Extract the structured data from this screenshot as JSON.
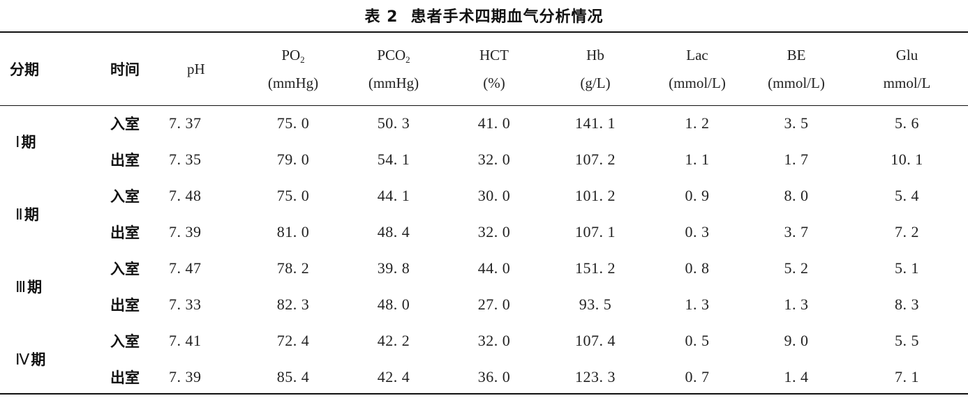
{
  "title": {
    "number": "表 2",
    "text": "患者手术四期血气分析情况"
  },
  "columns": [
    {
      "line1": "分期",
      "line2": ""
    },
    {
      "line1": "时间",
      "line2": ""
    },
    {
      "line1": "pH",
      "line2": ""
    },
    {
      "line1": "PO",
      "line1_sub": "2",
      "line2": "(mmHg)"
    },
    {
      "line1": "PCO",
      "line1_sub": "2",
      "line2": "(mmHg)"
    },
    {
      "line1": "HCT",
      "line2": "(%)"
    },
    {
      "line1": "Hb",
      "line2": "(g/L)"
    },
    {
      "line1": "Lac",
      "line2": "(mmol/L)"
    },
    {
      "line1": "BE",
      "line2": "(mmol/L)"
    },
    {
      "line1": "Glu",
      "line2": "mmol/L"
    }
  ],
  "stages": [
    {
      "roman": "Ⅰ",
      "label": "期"
    },
    {
      "roman": "Ⅱ",
      "label": "期"
    },
    {
      "roman": "Ⅲ",
      "label": "期"
    },
    {
      "roman": "Ⅳ",
      "label": "期"
    }
  ],
  "rows": [
    {
      "time": "入室",
      "ph": "7. 37",
      "po2": "75. 0",
      "pco2": "50. 3",
      "hct": "41. 0",
      "hb": "141. 1",
      "lac": "1. 2",
      "be": "3. 5",
      "glu": "5. 6"
    },
    {
      "time": "出室",
      "ph": "7. 35",
      "po2": "79. 0",
      "pco2": "54. 1",
      "hct": "32. 0",
      "hb": "107. 2",
      "lac": "1. 1",
      "be": "1. 7",
      "glu": "10. 1"
    },
    {
      "time": "入室",
      "ph": "7. 48",
      "po2": "75. 0",
      "pco2": "44. 1",
      "hct": "30. 0",
      "hb": "101. 2",
      "lac": "0. 9",
      "be": "8. 0",
      "glu": "5. 4"
    },
    {
      "time": "出室",
      "ph": "7. 39",
      "po2": "81. 0",
      "pco2": "48. 4",
      "hct": "32. 0",
      "hb": "107. 1",
      "lac": "0. 3",
      "be": "3. 7",
      "glu": "7. 2"
    },
    {
      "time": "入室",
      "ph": "7. 47",
      "po2": "78. 2",
      "pco2": "39. 8",
      "hct": "44. 0",
      "hb": "151. 2",
      "lac": "0. 8",
      "be": "5. 2",
      "glu": "5. 1"
    },
    {
      "time": "出室",
      "ph": "7. 33",
      "po2": "82. 3",
      "pco2": "48. 0",
      "hct": "27. 0",
      "hb": "93. 5",
      "lac": "1. 3",
      "be": "1. 3",
      "glu": "8. 3"
    },
    {
      "time": "入室",
      "ph": "7. 41",
      "po2": "72. 4",
      "pco2": "42. 2",
      "hct": "32. 0",
      "hb": "107. 4",
      "lac": "0. 5",
      "be": "9. 0",
      "glu": "5. 5"
    },
    {
      "time": "出室",
      "ph": "7. 39",
      "po2": "85. 4",
      "pco2": "42. 4",
      "hct": "36. 0",
      "hb": "123. 3",
      "lac": "0. 7",
      "be": "1. 4",
      "glu": "7. 1"
    }
  ]
}
